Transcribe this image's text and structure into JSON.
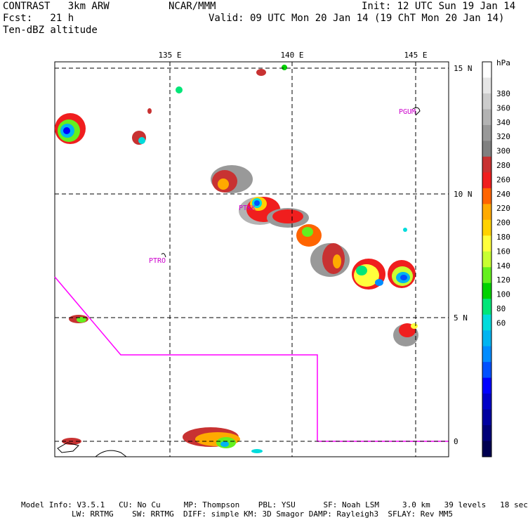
{
  "header": {
    "model": "CONTRAST   3km ARW",
    "forecast": "Fcst:   21 h",
    "field": "Ten-dBZ altitude",
    "center": "NCAR/MMM",
    "init": "Init: 12 UTC Sun 19 Jan 14",
    "valid": "Valid: 09 UTC Mon 20 Jan 14 (19 ChT Mon 20 Jan 14)"
  },
  "map": {
    "lon_labels": [
      "135 E",
      "140 E",
      "145 E"
    ],
    "lat_labels": [
      "15 N",
      "10 N",
      "5 N",
      "0"
    ],
    "stations": [
      "PGUM",
      "PTRO",
      "PTKK"
    ],
    "boundary_color": "#ff00ff",
    "grid_color": "#000000"
  },
  "colorbar": {
    "unit": "hPa",
    "labels": [
      "380",
      "360",
      "340",
      "320",
      "300",
      "280",
      "260",
      "240",
      "220",
      "200",
      "180",
      "160",
      "140",
      "120",
      "100",
      "80",
      "60"
    ],
    "colors": [
      "#ffffff",
      "#e6e6e6",
      "#cccccc",
      "#b3b3b3",
      "#999999",
      "#808080",
      "#c83232",
      "#f01e1e",
      "#ff6400",
      "#ffaa00",
      "#ffd200",
      "#ffff3c",
      "#c8ff32",
      "#64f01e",
      "#00d200",
      "#00e678",
      "#00dcdc",
      "#00b4f0",
      "#008cff",
      "#0050ff",
      "#0000ff",
      "#0000c8",
      "#0000a0",
      "#000078",
      "#000050"
    ]
  },
  "footer": {
    "line1": "Model Info: V3.5.1   CU: No Cu     MP: Thompson    PBL: YSU      SF: Noah LSM     3.0 km   39 levels   18 sec",
    "line2": "LW: RRTMG    SW: RRTMG  DIFF: simple KM: 3D Smagor DAMP: Rayleigh3  SFLAY: Rev MM5"
  }
}
